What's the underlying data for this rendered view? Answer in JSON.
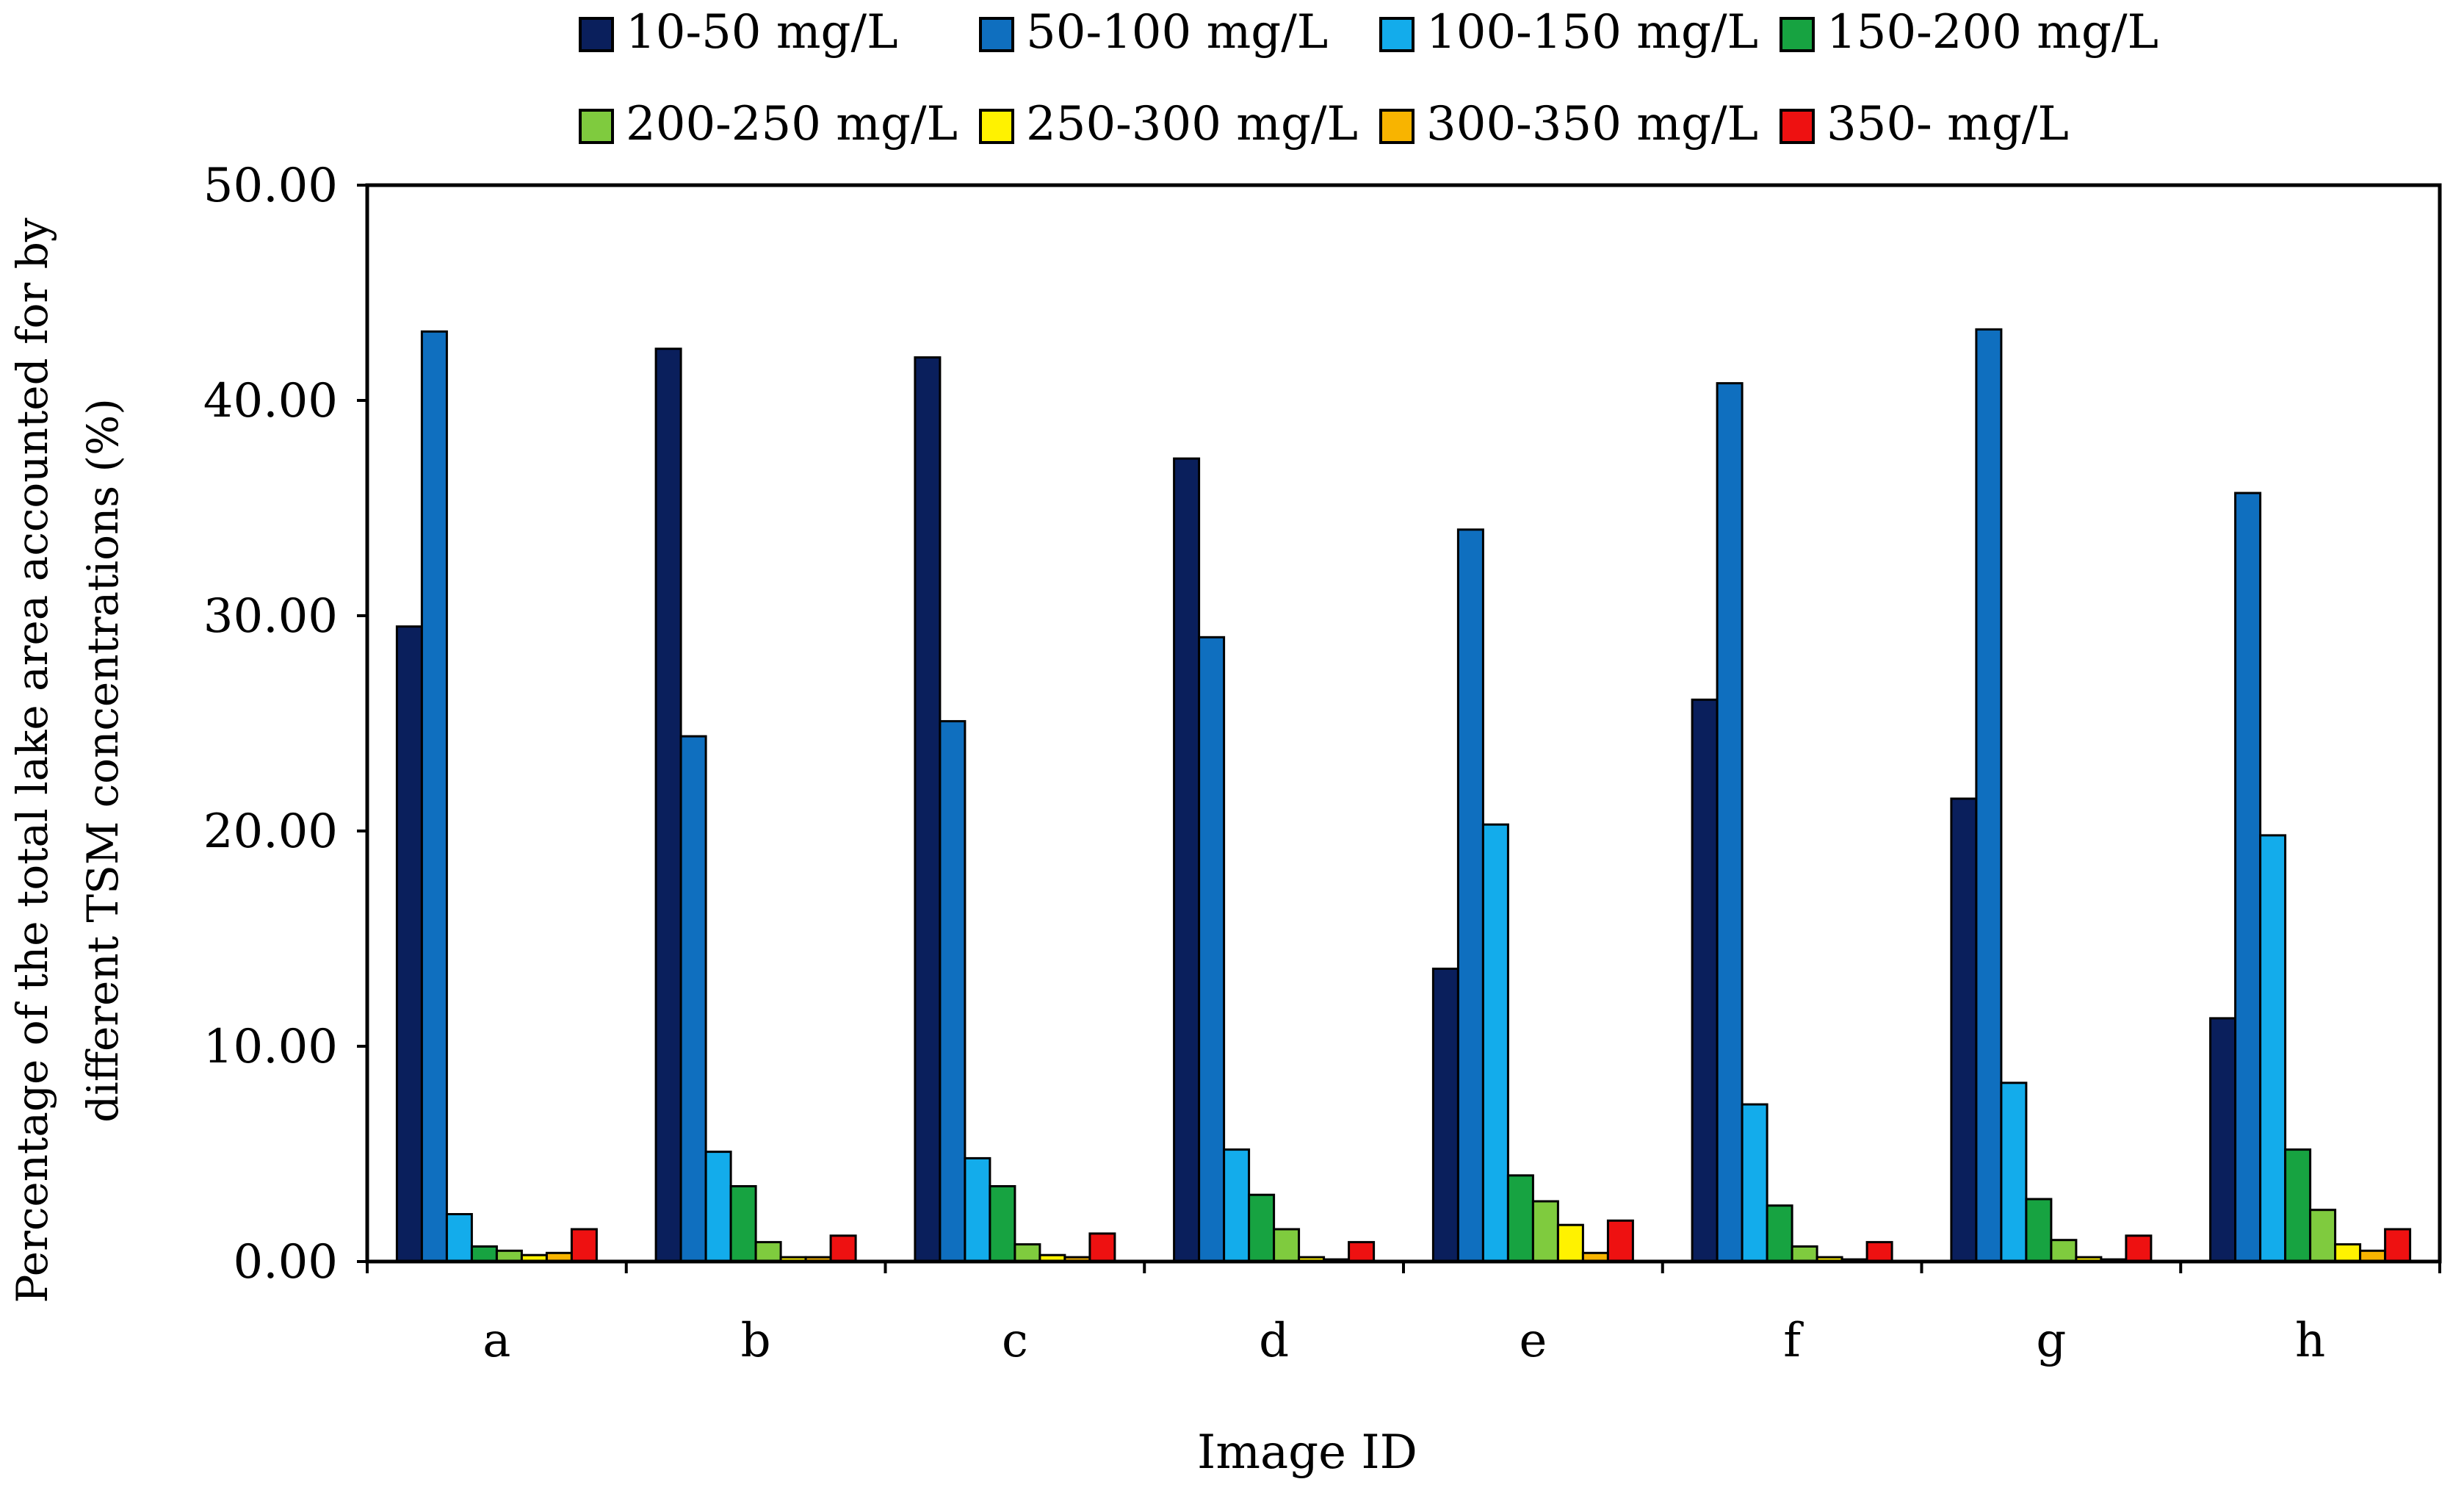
{
  "chart_data": {
    "type": "bar",
    "title": "",
    "xlabel": "Image ID",
    "ylabel_lines": [
      "Percentage of the total lake area accounted for by",
      "different TSM concentrations (%)"
    ],
    "ylim": [
      0,
      50
    ],
    "yticks": [
      "0.00",
      "10.00",
      "20.00",
      "30.00",
      "40.00",
      "50.00"
    ],
    "categories": [
      "a",
      "b",
      "c",
      "d",
      "e",
      "f",
      "g",
      "h"
    ],
    "legend_position": "top",
    "series": [
      {
        "name": "10-50 mg/L",
        "color": "#0A1F5C",
        "values": [
          29.5,
          42.4,
          42.0,
          37.3,
          13.6,
          26.1,
          21.5,
          11.3
        ]
      },
      {
        "name": "50-100 mg/L",
        "color": "#0F6FBF",
        "values": [
          43.2,
          24.4,
          25.1,
          29.0,
          34.0,
          40.8,
          43.3,
          35.7
        ]
      },
      {
        "name": "100-150 mg/L",
        "color": "#13ACEB",
        "values": [
          2.2,
          5.1,
          4.8,
          5.2,
          20.3,
          7.3,
          8.3,
          19.8
        ]
      },
      {
        "name": "150-200 mg/L",
        "color": "#17A341",
        "values": [
          0.7,
          3.5,
          3.5,
          3.1,
          4.0,
          2.6,
          2.9,
          5.2
        ]
      },
      {
        "name": "200-250 mg/L",
        "color": "#7FCB3E",
        "values": [
          0.5,
          0.9,
          0.8,
          1.5,
          2.8,
          0.7,
          1.0,
          2.4
        ]
      },
      {
        "name": "250-300 mg/L",
        "color": "#FFF200",
        "values": [
          0.3,
          0.2,
          0.3,
          0.2,
          1.7,
          0.2,
          0.2,
          0.8
        ]
      },
      {
        "name": "300-350 mg/L",
        "color": "#F8B400",
        "values": [
          0.4,
          0.2,
          0.2,
          0.1,
          0.4,
          0.1,
          0.1,
          0.5
        ]
      },
      {
        "name": "350- mg/L",
        "color": "#EE1111",
        "values": [
          1.5,
          1.2,
          1.3,
          0.9,
          1.9,
          0.9,
          1.2,
          1.5
        ]
      }
    ]
  }
}
